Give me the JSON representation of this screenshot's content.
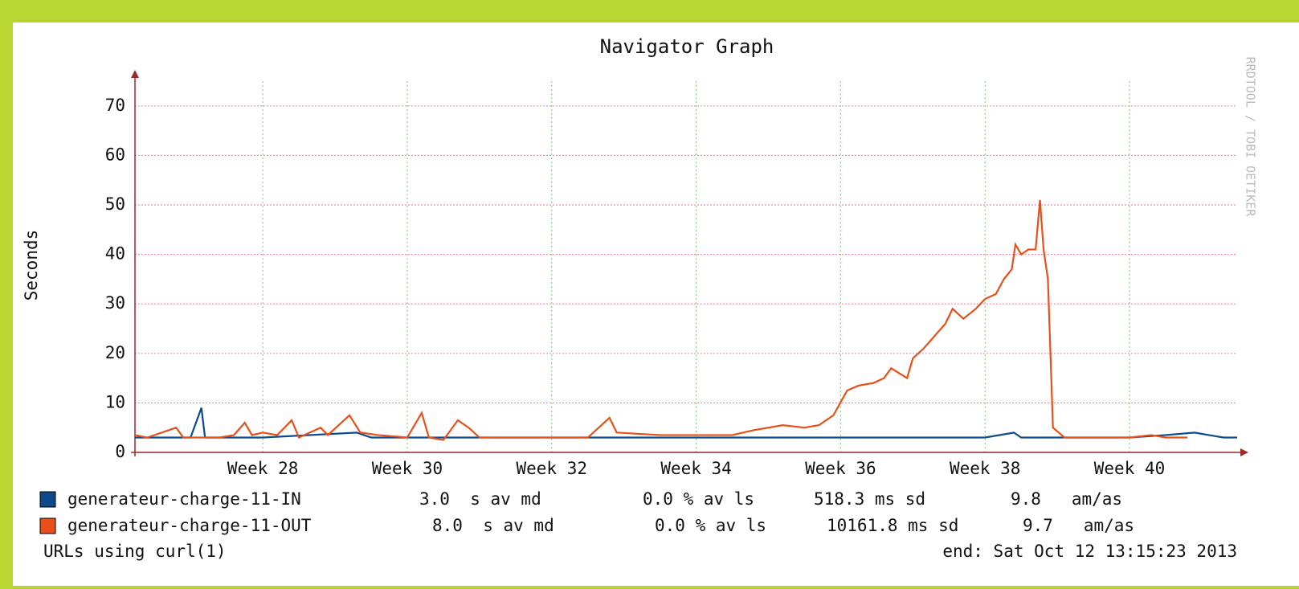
{
  "chart_data": {
    "type": "line",
    "title": "Navigator Graph",
    "ylabel": "Seconds",
    "side_text": "RRDTOOL / TOBI OETIKER",
    "footer_left": "URLs using curl(1)",
    "footer_right": "end: Sat Oct 12 13:15:23 2013",
    "xlim": [
      26.23,
      41.49
    ],
    "xticks": [
      {
        "value": 28,
        "label": "Week 28"
      },
      {
        "value": 30,
        "label": "Week 30"
      },
      {
        "value": 32,
        "label": "Week 32"
      },
      {
        "value": 34,
        "label": "Week 34"
      },
      {
        "value": 36,
        "label": "Week 36"
      },
      {
        "value": 38,
        "label": "Week 38"
      },
      {
        "value": 40,
        "label": "Week 40"
      }
    ],
    "ylim": [
      0,
      75
    ],
    "yticks": [
      0,
      10,
      20,
      30,
      40,
      50,
      60,
      70
    ],
    "grid": true,
    "series": [
      {
        "name": "generateur-charge-11-IN",
        "color": "#0d4a8c",
        "stats": [
          "3.0  s av md",
          "0.0 % av ls",
          "518.3 ms sd",
          "9.8   am/as"
        ],
        "x": [
          26.23,
          27.0,
          27.15,
          27.2,
          28.0,
          29.3,
          29.5,
          30.0,
          31.0,
          32.0,
          33.0,
          34.0,
          35.0,
          36.0,
          37.0,
          38.0,
          38.4,
          38.5,
          39.0,
          40.0,
          40.5,
          40.9,
          41.1,
          41.3,
          41.49
        ],
        "values": [
          3,
          3,
          9,
          3,
          3,
          4,
          3,
          3,
          3,
          3,
          3,
          3,
          3,
          3,
          3,
          3,
          4,
          3,
          3,
          3,
          3.5,
          4,
          3.5,
          3,
          3
        ]
      },
      {
        "name": "generateur-charge-11-OUT",
        "color": "#e8501a",
        "stats": [
          "8.0  s av md",
          "0.0 % av ls",
          "10161.8 ms sd",
          "9.7   am/as"
        ],
        "x": [
          26.23,
          26.4,
          26.8,
          26.9,
          27.4,
          27.6,
          27.75,
          27.85,
          28.0,
          28.2,
          28.4,
          28.5,
          28.8,
          28.9,
          29.2,
          29.35,
          29.6,
          30.0,
          30.2,
          30.3,
          30.5,
          30.7,
          30.85,
          31.0,
          31.5,
          32.0,
          32.5,
          32.8,
          32.9,
          33.5,
          34.0,
          34.5,
          34.8,
          35.2,
          35.5,
          35.7,
          35.9,
          36.09,
          36.25,
          36.45,
          36.6,
          36.7,
          36.92,
          37.0,
          37.15,
          37.3,
          37.45,
          37.55,
          37.7,
          37.87,
          38.0,
          38.15,
          38.26,
          38.37,
          38.42,
          38.5,
          38.6,
          38.7,
          38.76,
          38.81,
          38.87,
          38.94,
          39.1,
          39.5,
          40.0,
          40.3,
          40.5,
          40.8
        ],
        "values": [
          3.5,
          3,
          5,
          3,
          3,
          3.5,
          6,
          3.5,
          4,
          3.5,
          6.5,
          3,
          5,
          3.5,
          7.5,
          4,
          3.5,
          3,
          8,
          3,
          2.5,
          6.5,
          5,
          3,
          3,
          3,
          3,
          7,
          4,
          3.5,
          3.5,
          3.5,
          4.5,
          5.5,
          5,
          5.5,
          7.5,
          12.5,
          13.5,
          14,
          15,
          17,
          15,
          19,
          21,
          23.5,
          26,
          29,
          27,
          29,
          31,
          32,
          35,
          37,
          42,
          40,
          41,
          41,
          51,
          41,
          35,
          5,
          3,
          3,
          3,
          3.5,
          3,
          3
        ]
      }
    ]
  }
}
